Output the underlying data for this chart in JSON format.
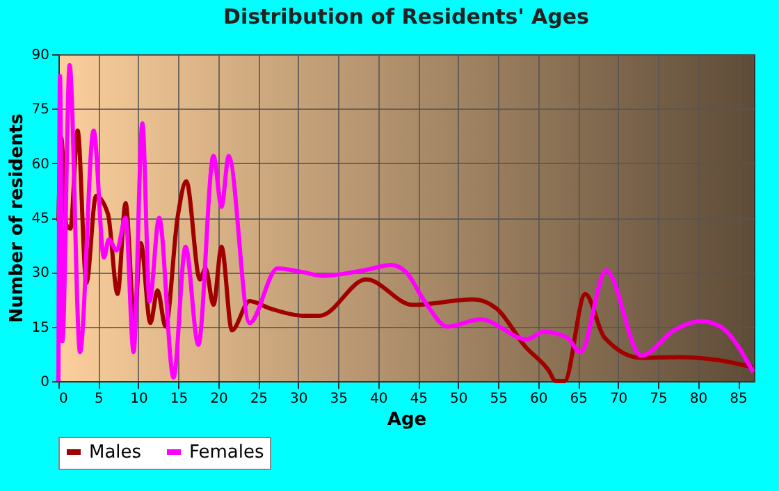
{
  "chart_data": {
    "type": "line",
    "title": "Distribution of Residents' Ages",
    "xlabel": "Age",
    "ylabel": "Number of residents",
    "xlim": [
      0,
      87
    ],
    "xticks": [
      0,
      5,
      10,
      15,
      20,
      25,
      30,
      35,
      40,
      45,
      50,
      55,
      60,
      65,
      70,
      75,
      80,
      85
    ],
    "ylim": [
      0,
      90
    ],
    "yticks": [
      0,
      15,
      30,
      45,
      60,
      75,
      90
    ],
    "grid": true,
    "legend": "bottom",
    "marker": "none",
    "line_style": "solid",
    "series": [
      {
        "name": "Males",
        "color": "#a00000",
        "x": [
          0,
          0.35,
          1,
          1.5,
          2.4,
          3.5,
          4.7,
          6.2,
          7.4,
          8.4,
          9.5,
          10.3,
          11.5,
          12.4,
          13.4,
          14.9,
          16,
          17.7,
          18.4,
          19.4,
          20.4,
          21.7,
          23.9,
          26.5,
          30.6,
          32.7,
          38.5,
          44.3,
          51.9,
          54.8,
          58.4,
          61.3,
          62.2,
          63.3,
          65.9,
          68.3,
          72.9,
          77.5,
          82.8,
          86.9
        ],
        "values": [
          44,
          67,
          43,
          42,
          69,
          27,
          51,
          46,
          24,
          49,
          17,
          38,
          16,
          25,
          15,
          45,
          55,
          28,
          31,
          21,
          37,
          14,
          22,
          20,
          18,
          18,
          28,
          21,
          22.5,
          20,
          9.5,
          3,
          0,
          0,
          24,
          12,
          6.4,
          6.6,
          5.7,
          3.8
        ]
      },
      {
        "name": "Females",
        "color": "#ff00ff",
        "x": [
          0,
          0.2,
          0.5,
          1.4,
          2.7,
          4.4,
          5.7,
          6.3,
          7.3,
          8.4,
          9.4,
          10.5,
          11.4,
          12.6,
          14.4,
          15.9,
          17.5,
          19.4,
          20.4,
          21.3,
          23.9,
          27.4,
          30.6,
          33,
          38.2,
          41.7,
          43.5,
          45.8,
          48.7,
          52.8,
          58.6,
          60.7,
          63.6,
          65.3,
          68.5,
          72.9,
          77,
          80.4,
          82.8,
          86.9
        ],
        "values": [
          0,
          84,
          11,
          87,
          8,
          69,
          34,
          39,
          36,
          45,
          8,
          71,
          22,
          45,
          1,
          37,
          10,
          62,
          48,
          62,
          16,
          31,
          30,
          29,
          30.5,
          32,
          30,
          22,
          15,
          17,
          11.5,
          13.6,
          12,
          8,
          30.5,
          7,
          14,
          16.5,
          15,
          2.5
        ]
      }
    ]
  }
}
